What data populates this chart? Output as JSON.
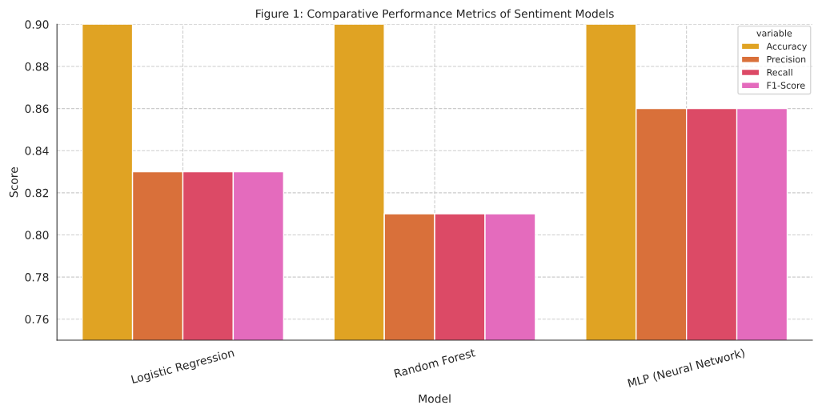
{
  "chart_data": {
    "type": "bar",
    "title": "Figure 1: Comparative Performance Metrics of Sentiment Models",
    "xlabel": "Model",
    "ylabel": "Score",
    "legend_title": "variable",
    "categories": [
      "Logistic Regression",
      "Random Forest",
      "MLP (Neural Network)"
    ],
    "series": [
      {
        "name": "Accuracy",
        "color": "#e0a323",
        "values": [
          0.9,
          0.9,
          0.9
        ]
      },
      {
        "name": "Precision",
        "color": "#d9703a",
        "values": [
          0.83,
          0.81,
          0.86
        ]
      },
      {
        "name": "Recall",
        "color": "#dc4a66",
        "values": [
          0.83,
          0.81,
          0.86
        ]
      },
      {
        "name": "F1-Score",
        "color": "#e46bbd",
        "values": [
          0.83,
          0.81,
          0.86
        ]
      }
    ],
    "ylim": [
      0.75,
      0.9
    ],
    "yticks": [
      0.76,
      0.78,
      {
        "value": 0.8,
        "label": "0.80"
      },
      0.82,
      0.84,
      0.86,
      0.88,
      {
        "value": 0.9,
        "label": "0.90"
      }
    ],
    "grid": true,
    "legend": "top right"
  }
}
